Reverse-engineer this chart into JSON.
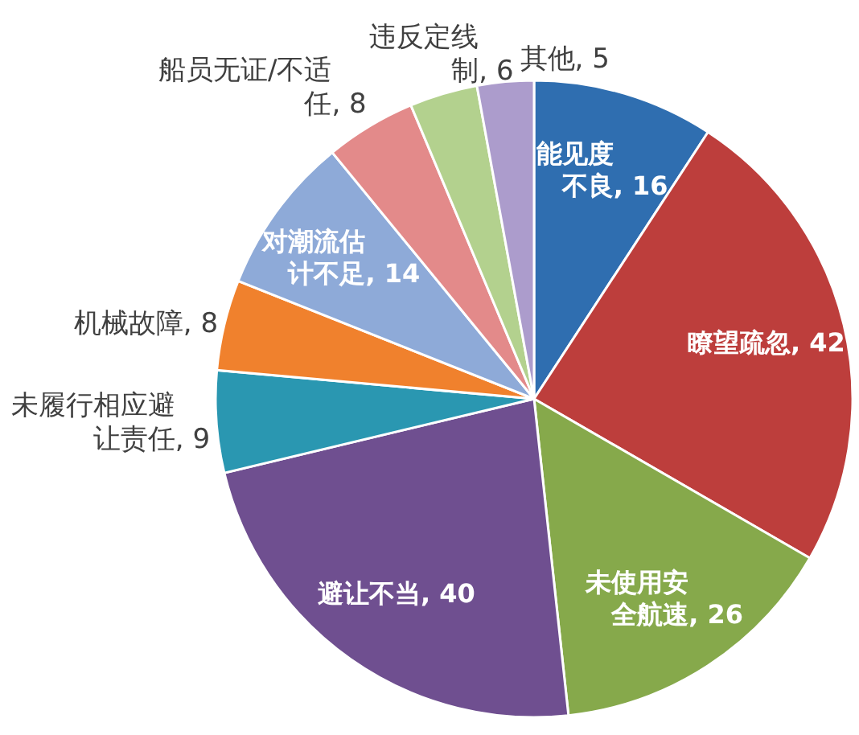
{
  "chart_data": {
    "type": "pie",
    "categories": [
      "能见度不良",
      "瞭望疏忽",
      "未使用安全航速",
      "避让不当",
      "未履行相应避让责任",
      "机械故障",
      "对潮流估计不足",
      "船员无证/不适任",
      "违反定线制",
      "其他"
    ],
    "values": [
      16,
      42,
      26,
      40,
      9,
      8,
      14,
      8,
      6,
      5
    ],
    "value_labels": [
      ", 16",
      ", 42",
      ", 26",
      ", 40",
      ", 9",
      ", 8",
      ", 14",
      ", 8",
      ", 6",
      ", 5"
    ],
    "colors": [
      "#2f6eb0",
      "#bd3e3c",
      "#86a94b",
      "#6f4f90",
      "#2a97b1",
      "#f0812d",
      "#8eaad8",
      "#e38a8a",
      "#b3d18e",
      "#ac9ccc"
    ]
  }
}
